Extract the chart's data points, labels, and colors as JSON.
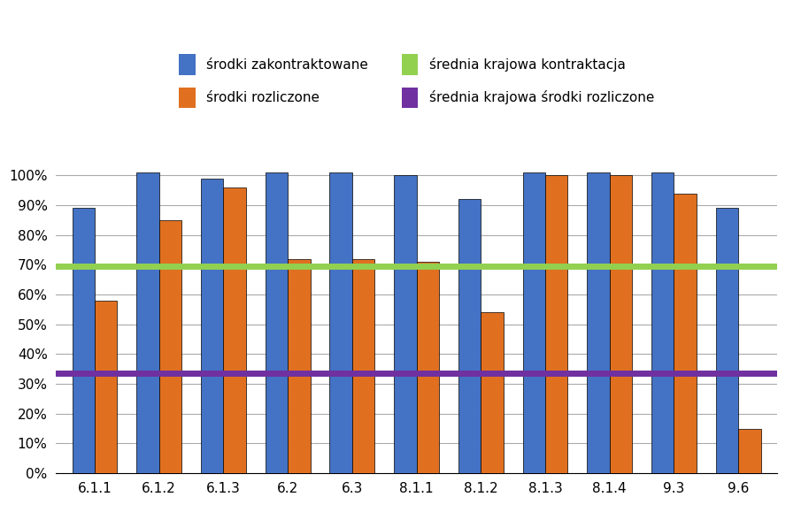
{
  "categories": [
    "6.1.1",
    "6.1.2",
    "6.1.3",
    "6.2",
    "6.3",
    "8.1.1",
    "8.1.2",
    "8.1.3",
    "8.1.4",
    "9.3",
    "9.6"
  ],
  "zakontraktowane": [
    0.89,
    1.01,
    0.99,
    1.01,
    1.01,
    1.0,
    0.92,
    1.01,
    1.01,
    1.01,
    0.89
  ],
  "rozliczone": [
    0.58,
    0.85,
    0.96,
    0.72,
    0.72,
    0.71,
    0.54,
    1.0,
    1.0,
    0.94,
    0.15
  ],
  "srednia_kontraktacja": 0.695,
  "srednia_rozliczone": 0.335,
  "color_zakontraktowane": "#4472C4",
  "color_rozliczone": "#E07020",
  "color_srednia_kontraktacja": "#92D050",
  "color_srednia_rozliczone": "#7030A0",
  "legend_zakontraktowane": "środki zakontraktowane",
  "legend_rozliczone": "środki rozliczone",
  "legend_srednia_kontraktacja": "średnia krajowa kontraktacja",
  "legend_srednia_rozliczone": "średnia krajowa środki rozliczone",
  "ylim": [
    0,
    1.1
  ],
  "yticks": [
    0.0,
    0.1,
    0.2,
    0.3,
    0.4,
    0.5,
    0.6,
    0.7,
    0.8,
    0.9,
    1.0
  ],
  "background_color": "#FFFFFF",
  "bar_width": 0.35
}
